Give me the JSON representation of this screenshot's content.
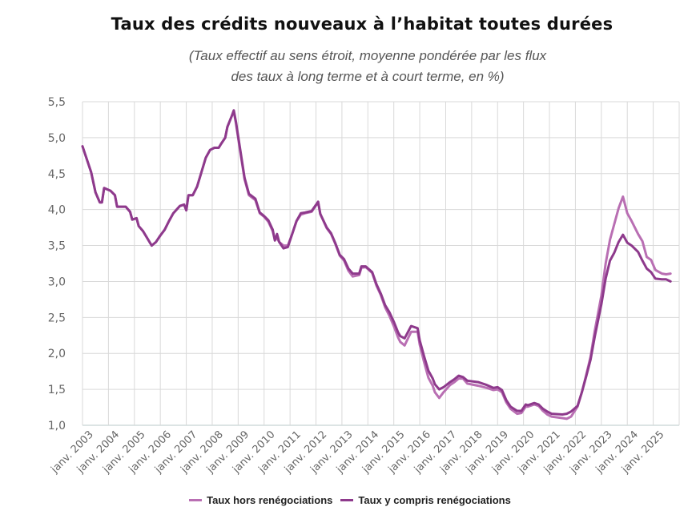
{
  "chart_data": {
    "type": "line",
    "title": "Taux des crédits nouveaux à l’habitat toutes durées",
    "subtitle": [
      "(Taux effectif au sens étroit, moyenne pondérée par les flux",
      "des taux à long terme et à court terme, en %)"
    ],
    "xlabel": "",
    "ylabel": "",
    "xlim": [
      "2003-01",
      "2026-01"
    ],
    "ylim": [
      1.0,
      5.5
    ],
    "yticks": [
      "1,0",
      "1,5",
      "2,0",
      "2,5",
      "3,0",
      "3,5",
      "4,0",
      "4,5",
      "5,0",
      "5,5"
    ],
    "xticks": [
      "janv. 2003",
      "janv. 2004",
      "janv. 2005",
      "janv. 2006",
      "janv. 2007",
      "janv. 2008",
      "janv. 2009",
      "janv. 2010",
      "janv. 2011",
      "janv. 2012",
      "janv. 2013",
      "janv. 2014",
      "janv. 2015",
      "janv. 2016",
      "janv. 2017",
      "janv. 2018",
      "janv. 2019",
      "janv. 2020",
      "janv. 2021",
      "janv. 2022",
      "janv. 2023",
      "janv. 2024",
      "janv. 2025"
    ],
    "grid": true,
    "legend_position": "bottom",
    "series": [
      {
        "name": "Taux hors renégociations",
        "color": "#b96fb3",
        "points": [
          [
            "2003-01",
            4.88
          ],
          [
            "2003-05",
            4.52
          ],
          [
            "2003-07",
            4.24
          ],
          [
            "2003-09",
            4.1
          ],
          [
            "2003-10",
            4.1
          ],
          [
            "2003-11",
            4.3
          ],
          [
            "2004-02",
            4.26
          ],
          [
            "2004-04",
            4.2
          ],
          [
            "2004-05",
            4.04
          ],
          [
            "2004-09",
            4.04
          ],
          [
            "2004-11",
            3.97
          ],
          [
            "2004-12",
            3.86
          ],
          [
            "2005-02",
            3.88
          ],
          [
            "2005-03",
            3.77
          ],
          [
            "2005-05",
            3.7
          ],
          [
            "2005-08",
            3.55
          ],
          [
            "2005-09",
            3.5
          ],
          [
            "2005-11",
            3.55
          ],
          [
            "2006-01",
            3.64
          ],
          [
            "2006-03",
            3.72
          ],
          [
            "2006-05",
            3.84
          ],
          [
            "2006-07",
            3.95
          ],
          [
            "2006-10",
            4.05
          ],
          [
            "2006-12",
            4.07
          ],
          [
            "2007-01",
            3.99
          ],
          [
            "2007-02",
            4.2
          ],
          [
            "2007-04",
            4.2
          ],
          [
            "2007-06",
            4.32
          ],
          [
            "2007-08",
            4.52
          ],
          [
            "2007-10",
            4.72
          ],
          [
            "2007-12",
            4.83
          ],
          [
            "2008-02",
            4.86
          ],
          [
            "2008-04",
            4.86
          ],
          [
            "2008-05",
            4.91
          ],
          [
            "2008-07",
            5.0
          ],
          [
            "2008-08",
            5.15
          ],
          [
            "2008-10",
            5.3
          ],
          [
            "2008-11",
            5.36
          ],
          [
            "2008-12",
            5.2
          ],
          [
            "2009-02",
            4.8
          ],
          [
            "2009-04",
            4.42
          ],
          [
            "2009-06",
            4.2
          ],
          [
            "2009-09",
            4.13
          ],
          [
            "2009-11",
            3.95
          ],
          [
            "2010-01",
            3.9
          ],
          [
            "2010-03",
            3.83
          ],
          [
            "2010-05",
            3.7
          ],
          [
            "2010-06",
            3.58
          ],
          [
            "2010-07",
            3.6
          ],
          [
            "2010-08",
            3.55
          ],
          [
            "2010-10",
            3.5
          ],
          [
            "2010-12",
            3.5
          ],
          [
            "2011-02",
            3.66
          ],
          [
            "2011-04",
            3.84
          ],
          [
            "2011-06",
            3.93
          ],
          [
            "2011-08",
            3.95
          ],
          [
            "2011-11",
            3.97
          ],
          [
            "2012-02",
            4.1
          ],
          [
            "2012-03",
            3.94
          ],
          [
            "2012-06",
            3.74
          ],
          [
            "2012-08",
            3.66
          ],
          [
            "2012-10",
            3.52
          ],
          [
            "2012-12",
            3.36
          ],
          [
            "2013-02",
            3.29
          ],
          [
            "2013-04",
            3.15
          ],
          [
            "2013-06",
            3.07
          ],
          [
            "2013-09",
            3.09
          ],
          [
            "2013-10",
            3.19
          ],
          [
            "2013-12",
            3.2
          ],
          [
            "2014-03",
            3.12
          ],
          [
            "2014-05",
            2.94
          ],
          [
            "2014-07",
            2.81
          ],
          [
            "2014-09",
            2.64
          ],
          [
            "2014-11",
            2.52
          ],
          [
            "2015-01",
            2.38
          ],
          [
            "2015-03",
            2.22
          ],
          [
            "2015-04",
            2.16
          ],
          [
            "2015-06",
            2.11
          ],
          [
            "2015-09",
            2.3
          ],
          [
            "2015-12",
            2.3
          ],
          [
            "2016-01",
            2.12
          ],
          [
            "2016-03",
            1.88
          ],
          [
            "2016-05",
            1.66
          ],
          [
            "2016-07",
            1.55
          ],
          [
            "2016-08",
            1.46
          ],
          [
            "2016-10",
            1.38
          ],
          [
            "2016-12",
            1.46
          ],
          [
            "2017-03",
            1.56
          ],
          [
            "2017-05",
            1.6
          ],
          [
            "2017-07",
            1.65
          ],
          [
            "2017-09",
            1.65
          ],
          [
            "2017-11",
            1.58
          ],
          [
            "2018-04",
            1.55
          ],
          [
            "2018-08",
            1.52
          ],
          [
            "2018-11",
            1.49
          ],
          [
            "2019-01",
            1.5
          ],
          [
            "2019-03",
            1.46
          ],
          [
            "2019-05",
            1.32
          ],
          [
            "2019-07",
            1.23
          ],
          [
            "2019-10",
            1.16
          ],
          [
            "2019-12",
            1.17
          ],
          [
            "2020-02",
            1.26
          ],
          [
            "2020-03",
            1.26
          ],
          [
            "2020-06",
            1.29
          ],
          [
            "2020-08",
            1.27
          ],
          [
            "2020-10",
            1.2
          ],
          [
            "2020-12",
            1.15
          ],
          [
            "2021-02",
            1.12
          ],
          [
            "2021-07",
            1.1
          ],
          [
            "2021-09",
            1.09
          ],
          [
            "2021-11",
            1.12
          ],
          [
            "2022-02",
            1.26
          ],
          [
            "2022-04",
            1.46
          ],
          [
            "2022-06",
            1.7
          ],
          [
            "2022-08",
            1.95
          ],
          [
            "2022-10",
            2.32
          ],
          [
            "2023-01",
            2.8
          ],
          [
            "2023-03",
            3.25
          ],
          [
            "2023-05",
            3.58
          ],
          [
            "2023-07",
            3.8
          ],
          [
            "2023-09",
            4.02
          ],
          [
            "2023-11",
            4.18
          ],
          [
            "2024-01",
            3.95
          ],
          [
            "2024-03",
            3.84
          ],
          [
            "2024-06",
            3.66
          ],
          [
            "2024-08",
            3.56
          ],
          [
            "2024-10",
            3.34
          ],
          [
            "2024-12",
            3.3
          ],
          [
            "2025-02",
            3.16
          ],
          [
            "2025-05",
            3.11
          ],
          [
            "2025-07",
            3.1
          ],
          [
            "2025-09",
            3.11
          ]
        ]
      },
      {
        "name": "Taux y compris renégociations",
        "color": "#8e3a8c",
        "points": [
          [
            "2003-01",
            4.88
          ],
          [
            "2003-05",
            4.52
          ],
          [
            "2003-07",
            4.24
          ],
          [
            "2003-09",
            4.1
          ],
          [
            "2003-10",
            4.1
          ],
          [
            "2003-11",
            4.3
          ],
          [
            "2004-02",
            4.26
          ],
          [
            "2004-04",
            4.2
          ],
          [
            "2004-05",
            4.04
          ],
          [
            "2004-09",
            4.04
          ],
          [
            "2004-11",
            3.97
          ],
          [
            "2004-12",
            3.86
          ],
          [
            "2005-02",
            3.88
          ],
          [
            "2005-03",
            3.77
          ],
          [
            "2005-05",
            3.7
          ],
          [
            "2005-08",
            3.55
          ],
          [
            "2005-09",
            3.5
          ],
          [
            "2005-11",
            3.55
          ],
          [
            "2006-01",
            3.64
          ],
          [
            "2006-03",
            3.72
          ],
          [
            "2006-05",
            3.84
          ],
          [
            "2006-07",
            3.95
          ],
          [
            "2006-10",
            4.05
          ],
          [
            "2006-12",
            4.07
          ],
          [
            "2007-01",
            3.99
          ],
          [
            "2007-02",
            4.2
          ],
          [
            "2007-04",
            4.2
          ],
          [
            "2007-06",
            4.32
          ],
          [
            "2007-08",
            4.52
          ],
          [
            "2007-10",
            4.72
          ],
          [
            "2007-12",
            4.83
          ],
          [
            "2008-02",
            4.86
          ],
          [
            "2008-04",
            4.86
          ],
          [
            "2008-05",
            4.91
          ],
          [
            "2008-07",
            5.0
          ],
          [
            "2008-08",
            5.15
          ],
          [
            "2008-10",
            5.3
          ],
          [
            "2008-11",
            5.38
          ],
          [
            "2008-12",
            5.22
          ],
          [
            "2009-02",
            4.83
          ],
          [
            "2009-04",
            4.44
          ],
          [
            "2009-06",
            4.22
          ],
          [
            "2009-09",
            4.15
          ],
          [
            "2009-11",
            3.96
          ],
          [
            "2010-01",
            3.91
          ],
          [
            "2010-03",
            3.85
          ],
          [
            "2010-05",
            3.72
          ],
          [
            "2010-06",
            3.57
          ],
          [
            "2010-07",
            3.66
          ],
          [
            "2010-08",
            3.55
          ],
          [
            "2010-10",
            3.46
          ],
          [
            "2010-12",
            3.48
          ],
          [
            "2011-02",
            3.66
          ],
          [
            "2011-04",
            3.84
          ],
          [
            "2011-06",
            3.95
          ],
          [
            "2011-08",
            3.96
          ],
          [
            "2011-11",
            3.98
          ],
          [
            "2012-02",
            4.11
          ],
          [
            "2012-03",
            3.94
          ],
          [
            "2012-06",
            3.75
          ],
          [
            "2012-08",
            3.67
          ],
          [
            "2012-10",
            3.53
          ],
          [
            "2012-12",
            3.37
          ],
          [
            "2013-02",
            3.31
          ],
          [
            "2013-04",
            3.18
          ],
          [
            "2013-06",
            3.11
          ],
          [
            "2013-09",
            3.11
          ],
          [
            "2013-10",
            3.21
          ],
          [
            "2013-12",
            3.21
          ],
          [
            "2014-03",
            3.13
          ],
          [
            "2014-05",
            2.96
          ],
          [
            "2014-07",
            2.83
          ],
          [
            "2014-09",
            2.67
          ],
          [
            "2014-11",
            2.57
          ],
          [
            "2015-01",
            2.44
          ],
          [
            "2015-03",
            2.29
          ],
          [
            "2015-04",
            2.24
          ],
          [
            "2015-06",
            2.21
          ],
          [
            "2015-09",
            2.38
          ],
          [
            "2015-12",
            2.35
          ],
          [
            "2016-01",
            2.18
          ],
          [
            "2016-03",
            1.96
          ],
          [
            "2016-05",
            1.76
          ],
          [
            "2016-07",
            1.65
          ],
          [
            "2016-08",
            1.57
          ],
          [
            "2016-10",
            1.5
          ],
          [
            "2016-12",
            1.53
          ],
          [
            "2017-03",
            1.6
          ],
          [
            "2017-05",
            1.64
          ],
          [
            "2017-07",
            1.69
          ],
          [
            "2017-09",
            1.67
          ],
          [
            "2017-11",
            1.62
          ],
          [
            "2018-04",
            1.6
          ],
          [
            "2018-08",
            1.56
          ],
          [
            "2018-11",
            1.52
          ],
          [
            "2019-01",
            1.53
          ],
          [
            "2019-03",
            1.49
          ],
          [
            "2019-05",
            1.35
          ],
          [
            "2019-07",
            1.26
          ],
          [
            "2019-10",
            1.2
          ],
          [
            "2019-12",
            1.2
          ],
          [
            "2020-02",
            1.29
          ],
          [
            "2020-03",
            1.28
          ],
          [
            "2020-06",
            1.31
          ],
          [
            "2020-08",
            1.29
          ],
          [
            "2020-10",
            1.23
          ],
          [
            "2020-12",
            1.19
          ],
          [
            "2021-02",
            1.16
          ],
          [
            "2021-07",
            1.15
          ],
          [
            "2021-09",
            1.16
          ],
          [
            "2021-11",
            1.19
          ],
          [
            "2022-02",
            1.27
          ],
          [
            "2022-04",
            1.46
          ],
          [
            "2022-06",
            1.68
          ],
          [
            "2022-08",
            1.91
          ],
          [
            "2022-10",
            2.24
          ],
          [
            "2023-01",
            2.68
          ],
          [
            "2023-03",
            3.04
          ],
          [
            "2023-05",
            3.29
          ],
          [
            "2023-07",
            3.4
          ],
          [
            "2023-09",
            3.55
          ],
          [
            "2023-11",
            3.65
          ],
          [
            "2024-01",
            3.54
          ],
          [
            "2024-03",
            3.5
          ],
          [
            "2024-06",
            3.41
          ],
          [
            "2024-08",
            3.29
          ],
          [
            "2024-10",
            3.18
          ],
          [
            "2024-12",
            3.13
          ],
          [
            "2025-02",
            3.04
          ],
          [
            "2025-05",
            3.03
          ],
          [
            "2025-07",
            3.03
          ],
          [
            "2025-09",
            3.0
          ]
        ]
      }
    ]
  }
}
